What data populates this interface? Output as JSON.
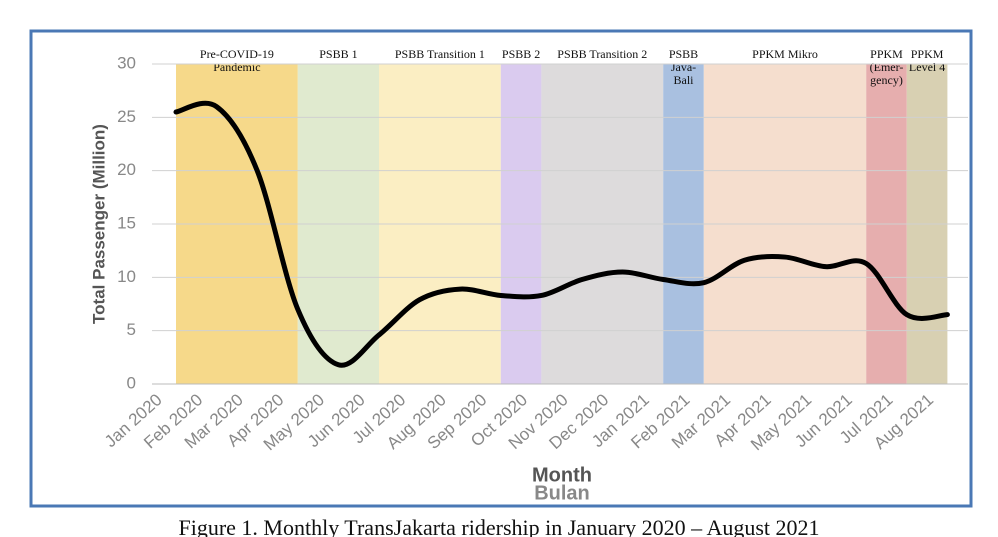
{
  "chart_data": {
    "type": "line",
    "y_label": "Total Passenger (Million)",
    "x_label": "Month",
    "x_label_2": "Bulan",
    "caption": "Figure 1. Monthly TransJakarta ridership in January 2020 – August 2021",
    "categories": [
      "Jan 2020",
      "Feb 2020",
      "Mar 2020",
      "Apr 2020",
      "May 2020",
      "Jun 2020",
      "Jul 2020",
      "Aug 2020",
      "Sep 2020",
      "Oct 2020",
      "Nov 2020",
      "Dec 2020",
      "Jan 2021",
      "Feb 2021",
      "Mar 2021",
      "Apr 2021",
      "May 2021",
      "Jun 2021",
      "Jul 2021",
      "Aug 2021"
    ],
    "series": [
      {
        "color": "#000000",
        "values": [
          25.5,
          26,
          20,
          7,
          1.8,
          4.6,
          7.9,
          8.9,
          8.3,
          8.3,
          9.8,
          10.5,
          9.8,
          9.5,
          11.6,
          11.9,
          11,
          11.3,
          6.5,
          6.5
        ]
      }
    ],
    "phases": [
      {
        "lines": [
          "Pre-COVID-19",
          "Pandemic"
        ],
        "from": "Jan 2020",
        "to": "Apr 2020",
        "color": "#f6d98a"
      },
      {
        "lines": [
          "PSBB 1"
        ],
        "from": "Apr 2020",
        "to": "Jun 2020",
        "color": "#e0eacf"
      },
      {
        "lines": [
          "PSBB Transition 1"
        ],
        "from": "Jun 2020",
        "to": "Sep 2020",
        "color": "#fbeec3"
      },
      {
        "lines": [
          "PSBB 2"
        ],
        "from": "Sep 2020",
        "to": "Oct 2020",
        "color": "#dacbef"
      },
      {
        "lines": [
          "PSBB Transition 2"
        ],
        "from": "Oct 2020",
        "to": "Jan 2021",
        "color": "#dddbdc"
      },
      {
        "lines": [
          "PSBB",
          "Java-",
          "Bali"
        ],
        "from": "Jan 2021",
        "to": "Feb 2021",
        "color": "#a9c0e0"
      },
      {
        "lines": [
          "PPKM Mikro"
        ],
        "from": "Feb 2021",
        "to": "Jun 2021",
        "color": "#f5dece"
      },
      {
        "lines": [
          "PPKM",
          "(Emer-",
          "gency)"
        ],
        "from": "Jun 2021",
        "to": "Jul 2021",
        "color": "#e6aeae"
      },
      {
        "lines": [
          "PPKM",
          "Level 4"
        ],
        "from": "Jul 2021",
        "to": "Aug 2021",
        "color": "#d8d0b2"
      }
    ],
    "ylim": [
      0,
      30
    ],
    "yticks": [
      0,
      5,
      10,
      15,
      20,
      25,
      30
    ],
    "grid": true
  }
}
